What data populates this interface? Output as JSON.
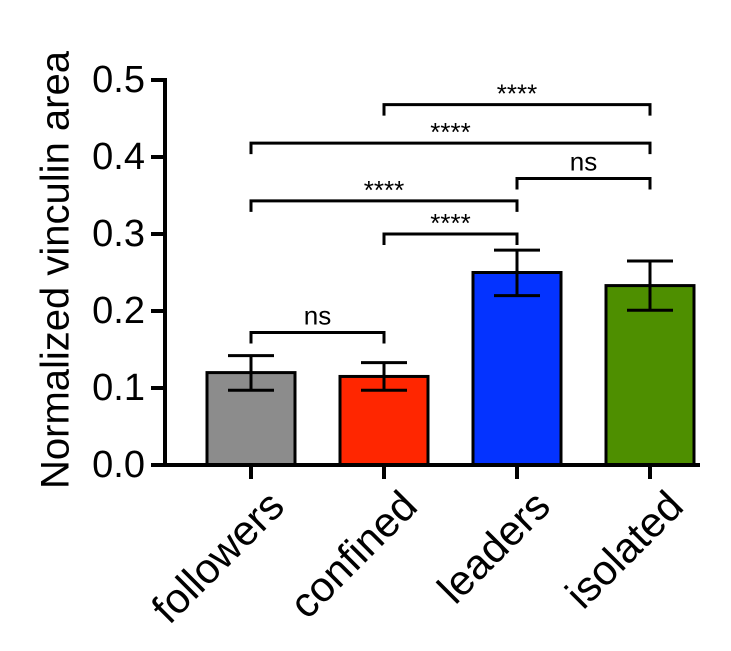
{
  "chart_data": {
    "type": "bar",
    "title": "",
    "xlabel": "",
    "ylabel": "Normalized vinculin area",
    "ylim": [
      0,
      0.5
    ],
    "yticks": [
      "0.0",
      "0.1",
      "0.2",
      "0.3",
      "0.4",
      "0.5"
    ],
    "yticks_values": [
      0.0,
      0.1,
      0.2,
      0.3,
      0.4,
      0.5
    ],
    "categories": [
      "followers",
      "confined",
      "leaders",
      "isolated"
    ],
    "values": [
      0.12,
      0.115,
      0.25,
      0.233
    ],
    "error_low": [
      0.097,
      0.097,
      0.22,
      0.201
    ],
    "error_high": [
      0.142,
      0.133,
      0.279,
      0.265
    ],
    "colors": [
      "#8c8c8c",
      "#ff2600",
      "#0433ff",
      "#4e8f00"
    ],
    "grid": false,
    "significance": [
      {
        "from": 0,
        "to": 1,
        "label": "ns",
        "level": 0.172
      },
      {
        "from": 1,
        "to": 2,
        "label": "****",
        "level": 0.3
      },
      {
        "from": 0,
        "to": 2,
        "label": "****",
        "level": 0.343
      },
      {
        "from": 2,
        "to": 3,
        "label": "ns",
        "level": 0.372
      },
      {
        "from": 0,
        "to": 3,
        "label": "****",
        "level": 0.418
      },
      {
        "from": 1,
        "to": 3,
        "label": "****",
        "level": 0.468
      }
    ]
  }
}
